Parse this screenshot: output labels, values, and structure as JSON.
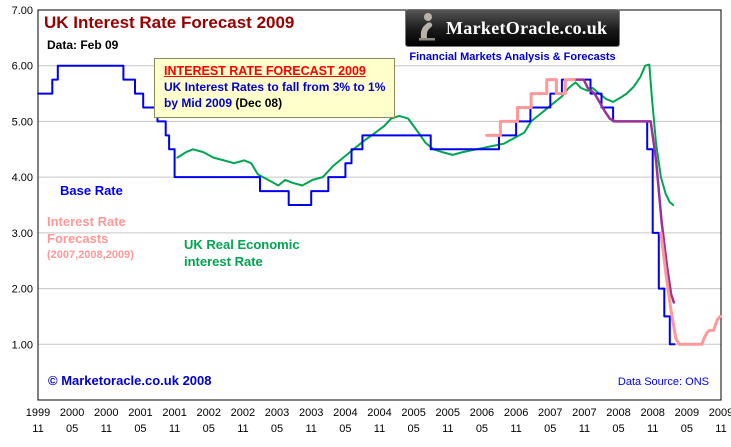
{
  "header": {
    "title": "UK Interest Rate Forecast 2009",
    "data_date": "Data: Feb 09"
  },
  "callout": {
    "title": "INTEREST RATE FORECAST 2009",
    "line1": "UK Interest Rates to fall from 3% to 1%",
    "line2": "by Mid 2009 ",
    "line2_note": "(Dec 08)"
  },
  "logo": {
    "brand": "MarketOracle.co.uk",
    "tagline": "Financial Markets Analysis & Forecasts"
  },
  "labels": {
    "base_rate": "Base Rate",
    "forecast_line1": "Interest Rate",
    "forecast_line2": "Forecasts",
    "forecast_years": "(2007,2008,2009)",
    "real_line1": "UK Real Economic",
    "real_line2": "interest Rate"
  },
  "footer": {
    "copyright": "© Marketoracle.co.uk 2008",
    "source": "Data Source: ONS"
  },
  "colors": {
    "title": "#990000",
    "base_rate": "#0000EE",
    "forecast_pink": "#FF9999",
    "forecast_purple": "#993399",
    "real_rate": "#00A550",
    "grid": "#C6C6C6",
    "callout_bg": "#FFFFCC"
  },
  "chart_data": {
    "type": "line",
    "title": "UK Interest Rate Forecast 2009",
    "xlabel": "",
    "ylabel": "",
    "ylim": [
      0,
      7
    ],
    "x_domain": [
      1999.83,
      2009.83
    ],
    "grid": true,
    "y_ticks": [
      1,
      2,
      3,
      4,
      5,
      6,
      7
    ],
    "x_ticks": [
      {
        "year": "1999",
        "month": "11"
      },
      {
        "year": "2000",
        "month": "05"
      },
      {
        "year": "2000",
        "month": "11"
      },
      {
        "year": "2001",
        "month": "05"
      },
      {
        "year": "2001",
        "month": "11"
      },
      {
        "year": "2002",
        "month": "05"
      },
      {
        "year": "2002",
        "month": "11"
      },
      {
        "year": "2003",
        "month": "05"
      },
      {
        "year": "2003",
        "month": "11"
      },
      {
        "year": "2004",
        "month": "05"
      },
      {
        "year": "2004",
        "month": "11"
      },
      {
        "year": "2005",
        "month": "05"
      },
      {
        "year": "2005",
        "month": "11"
      },
      {
        "year": "2006",
        "month": "05"
      },
      {
        "year": "2006",
        "month": "11"
      },
      {
        "year": "2007",
        "month": "05"
      },
      {
        "year": "2007",
        "month": "11"
      },
      {
        "year": "2008",
        "month": "05"
      },
      {
        "year": "2008",
        "month": "11"
      },
      {
        "year": "2009",
        "month": "05"
      },
      {
        "year": "2009",
        "month": "11"
      }
    ],
    "series": [
      {
        "name": "UK Real Economic Interest Rate",
        "color": "#00A550",
        "width": 2,
        "points": [
          [
            2001.87,
            4.35
          ],
          [
            2002.0,
            4.45
          ],
          [
            2002.1,
            4.5
          ],
          [
            2002.25,
            4.45
          ],
          [
            2002.4,
            4.35
          ],
          [
            2002.55,
            4.3
          ],
          [
            2002.7,
            4.25
          ],
          [
            2002.85,
            4.3
          ],
          [
            2002.95,
            4.25
          ],
          [
            2003.05,
            4.05
          ],
          [
            2003.2,
            3.95
          ],
          [
            2003.35,
            3.85
          ],
          [
            2003.45,
            3.95
          ],
          [
            2003.55,
            3.9
          ],
          [
            2003.7,
            3.85
          ],
          [
            2003.85,
            3.95
          ],
          [
            2004.0,
            4.0
          ],
          [
            2004.15,
            4.2
          ],
          [
            2004.3,
            4.35
          ],
          [
            2004.45,
            4.5
          ],
          [
            2004.6,
            4.65
          ],
          [
            2004.75,
            4.78
          ],
          [
            2004.9,
            4.92
          ],
          [
            2005.0,
            5.05
          ],
          [
            2005.12,
            5.1
          ],
          [
            2005.25,
            5.05
          ],
          [
            2005.4,
            4.8
          ],
          [
            2005.5,
            4.62
          ],
          [
            2005.62,
            4.5
          ],
          [
            2005.75,
            4.45
          ],
          [
            2005.9,
            4.4
          ],
          [
            2006.05,
            4.45
          ],
          [
            2006.25,
            4.5
          ],
          [
            2006.45,
            4.55
          ],
          [
            2006.65,
            4.6
          ],
          [
            2006.8,
            4.7
          ],
          [
            2006.95,
            4.8
          ],
          [
            2007.05,
            5.0
          ],
          [
            2007.2,
            5.15
          ],
          [
            2007.35,
            5.3
          ],
          [
            2007.5,
            5.45
          ],
          [
            2007.6,
            5.6
          ],
          [
            2007.7,
            5.7
          ],
          [
            2007.78,
            5.6
          ],
          [
            2007.88,
            5.55
          ],
          [
            2007.95,
            5.6
          ],
          [
            2008.05,
            5.5
          ],
          [
            2008.15,
            5.4
          ],
          [
            2008.25,
            5.35
          ],
          [
            2008.35,
            5.42
          ],
          [
            2008.45,
            5.5
          ],
          [
            2008.55,
            5.62
          ],
          [
            2008.65,
            5.8
          ],
          [
            2008.72,
            6.0
          ],
          [
            2008.78,
            6.02
          ],
          [
            2008.82,
            5.4
          ],
          [
            2008.88,
            4.6
          ],
          [
            2008.95,
            4.0
          ],
          [
            2009.02,
            3.7
          ],
          [
            2009.08,
            3.55
          ],
          [
            2009.13,
            3.5
          ]
        ]
      },
      {
        "name": "Base Rate",
        "color": "#0000EE",
        "width": 2,
        "points": [
          [
            1999.83,
            5.5
          ],
          [
            2000.04,
            5.5
          ],
          [
            2000.04,
            5.75
          ],
          [
            2000.12,
            5.75
          ],
          [
            2000.12,
            6.0
          ],
          [
            2001.08,
            6.0
          ],
          [
            2001.08,
            5.75
          ],
          [
            2001.25,
            5.75
          ],
          [
            2001.25,
            5.5
          ],
          [
            2001.37,
            5.5
          ],
          [
            2001.37,
            5.25
          ],
          [
            2001.58,
            5.25
          ],
          [
            2001.58,
            5.0
          ],
          [
            2001.7,
            5.0
          ],
          [
            2001.7,
            4.75
          ],
          [
            2001.75,
            4.75
          ],
          [
            2001.75,
            4.5
          ],
          [
            2001.83,
            4.5
          ],
          [
            2001.83,
            4.0
          ],
          [
            2003.08,
            4.0
          ],
          [
            2003.08,
            3.75
          ],
          [
            2003.5,
            3.75
          ],
          [
            2003.5,
            3.5
          ],
          [
            2003.83,
            3.5
          ],
          [
            2003.83,
            3.75
          ],
          [
            2004.08,
            3.75
          ],
          [
            2004.08,
            4.0
          ],
          [
            2004.33,
            4.0
          ],
          [
            2004.33,
            4.25
          ],
          [
            2004.42,
            4.25
          ],
          [
            2004.42,
            4.5
          ],
          [
            2004.58,
            4.5
          ],
          [
            2004.58,
            4.75
          ],
          [
            2005.58,
            4.75
          ],
          [
            2005.58,
            4.5
          ],
          [
            2006.58,
            4.5
          ],
          [
            2006.58,
            4.75
          ],
          [
            2006.83,
            4.75
          ],
          [
            2006.83,
            5.0
          ],
          [
            2007.04,
            5.0
          ],
          [
            2007.04,
            5.25
          ],
          [
            2007.33,
            5.25
          ],
          [
            2007.33,
            5.5
          ],
          [
            2007.5,
            5.5
          ],
          [
            2007.5,
            5.75
          ],
          [
            2007.92,
            5.75
          ],
          [
            2007.92,
            5.5
          ],
          [
            2008.08,
            5.5
          ],
          [
            2008.08,
            5.25
          ],
          [
            2008.25,
            5.25
          ],
          [
            2008.25,
            5.0
          ],
          [
            2008.75,
            5.0
          ],
          [
            2008.75,
            4.5
          ],
          [
            2008.83,
            4.5
          ],
          [
            2008.83,
            3.0
          ],
          [
            2008.92,
            3.0
          ],
          [
            2008.92,
            2.0
          ],
          [
            2009.0,
            2.0
          ],
          [
            2009.0,
            1.5
          ],
          [
            2009.08,
            1.5
          ],
          [
            2009.08,
            1.0
          ],
          [
            2009.15,
            1.0
          ]
        ]
      },
      {
        "name": "Interest Rate Forecast 2008",
        "color": "#993399",
        "width": 2.5,
        "points": [
          [
            2007.68,
            5.75
          ],
          [
            2007.82,
            5.75
          ],
          [
            2007.88,
            5.6
          ],
          [
            2007.98,
            5.5
          ],
          [
            2008.05,
            5.35
          ],
          [
            2008.12,
            5.2
          ],
          [
            2008.2,
            5.05
          ],
          [
            2008.28,
            5.0
          ],
          [
            2008.8,
            5.0
          ],
          [
            2008.88,
            4.3
          ],
          [
            2008.96,
            3.2
          ],
          [
            2009.04,
            2.4
          ],
          [
            2009.1,
            1.9
          ],
          [
            2009.14,
            1.75
          ]
        ]
      },
      {
        "name": "Interest Rate Forecast 2007",
        "color": "#FF9999",
        "width": 3,
        "points": [
          [
            2006.4,
            4.75
          ],
          [
            2006.6,
            4.75
          ],
          [
            2006.6,
            5.0
          ],
          [
            2006.85,
            5.0
          ],
          [
            2006.85,
            5.25
          ],
          [
            2007.05,
            5.25
          ],
          [
            2007.05,
            5.5
          ],
          [
            2007.28,
            5.5
          ],
          [
            2007.28,
            5.75
          ],
          [
            2007.42,
            5.75
          ],
          [
            2007.42,
            5.5
          ],
          [
            2007.55,
            5.5
          ],
          [
            2007.55,
            5.75
          ],
          [
            2007.68,
            5.75
          ]
        ]
      },
      {
        "name": "Interest Rate Forecast 2009",
        "color": "#FF9999",
        "width": 3,
        "points": [
          [
            2008.95,
            3.0
          ],
          [
            2009.03,
            2.2
          ],
          [
            2009.1,
            1.6
          ],
          [
            2009.17,
            1.1
          ],
          [
            2009.22,
            1.0
          ],
          [
            2009.55,
            1.0
          ],
          [
            2009.58,
            1.1
          ],
          [
            2009.62,
            1.2
          ],
          [
            2009.66,
            1.25
          ],
          [
            2009.72,
            1.25
          ],
          [
            2009.75,
            1.35
          ],
          [
            2009.78,
            1.45
          ],
          [
            2009.82,
            1.5
          ]
        ]
      }
    ]
  }
}
